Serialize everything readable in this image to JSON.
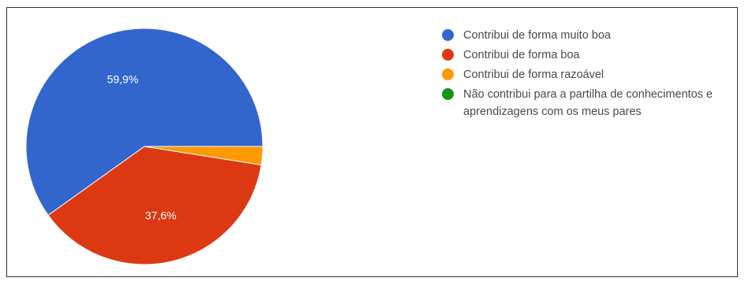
{
  "chart_data": {
    "type": "pie",
    "title": "",
    "series": [
      {
        "name": "Contribui de forma muito boa",
        "value": 59.9,
        "label": "59,9%",
        "color": "#3366cc"
      },
      {
        "name": "Contribui de forma boa",
        "value": 37.6,
        "label": "37,6%",
        "color": "#dc3912"
      },
      {
        "name": "Contribui de forma razoável",
        "value": 2.5,
        "label": "",
        "color": "#ff9900"
      },
      {
        "name": "Não contribui para a partilha de conhecimentos e aprendizagens com os meus pares",
        "value": 0,
        "label": "",
        "color": "#109618"
      }
    ],
    "legend_position": "right",
    "start_angle": "3 o'clock, counter-clockwise",
    "label_color": "#ffffff"
  }
}
